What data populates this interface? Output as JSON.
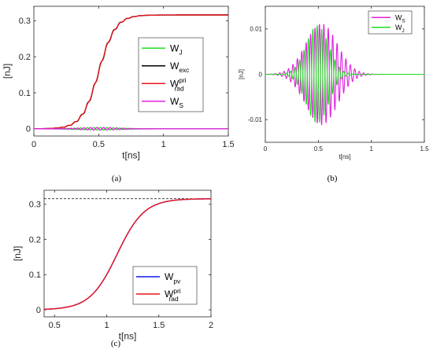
{
  "chart_data": [
    {
      "type": "line",
      "caption": "(a)",
      "xlabel": "t[ns]",
      "ylabel": "[nJ]",
      "xlim": [
        0,
        1.5
      ],
      "ylim": [
        -0.02,
        0.34
      ],
      "xticks": [
        "0",
        "0.5",
        "1",
        "1.5"
      ],
      "yticks": [
        "0",
        "0.1",
        "0.2",
        "0.3"
      ],
      "legend_position": "center-right",
      "series": [
        {
          "name": "W",
          "sub": "J",
          "sup": "",
          "color": "#22dd22",
          "kind": "osc",
          "amplitude": 0.0035,
          "center": 0.5,
          "width": 0.22,
          "frequency": 20,
          "phase": 0
        },
        {
          "name": "W",
          "sub": "exc",
          "sup": "",
          "color": "#000000",
          "kind": "sigmoid",
          "final": 0.316,
          "midpoint": 0.5,
          "width": 0.065,
          "ripple": 0.006
        },
        {
          "name": "W",
          "sub": "rad",
          "sup": "pri",
          "color": "#e8141b",
          "kind": "sigmoid",
          "final": 0.316,
          "midpoint": 0.5,
          "width": 0.065,
          "ripple": 0.004
        },
        {
          "name": "W",
          "sub": "S",
          "sup": "",
          "color": "#e020e0",
          "kind": "osc",
          "amplitude": 0.0035,
          "center": 0.5,
          "width": 0.22,
          "frequency": 20,
          "phase": 3.14159
        }
      ]
    },
    {
      "type": "line",
      "caption": "(b)",
      "xlabel": "t[ns]",
      "ylabel": "[nJ]",
      "xlim": [
        0,
        1.5
      ],
      "ylim": [
        -0.015,
        0.015
      ],
      "xticks": [
        "0",
        "0.5",
        "1",
        "1.5"
      ],
      "yticks": [
        "-0.01",
        "0",
        "0.01"
      ],
      "legend_position": "top-right",
      "series": [
        {
          "name": "W",
          "sub": "S",
          "sup": "",
          "color": "#e020e0",
          "kind": "osc",
          "amplitude": 0.0112,
          "center": 0.53,
          "width": 0.21,
          "frequency": 24,
          "phase": 0
        },
        {
          "name": "W",
          "sub": "J",
          "sup": "",
          "color": "#22dd22",
          "kind": "osc",
          "amplitude": 0.0108,
          "center": 0.49,
          "width": 0.15,
          "frequency": 24,
          "phase": 3.14159
        }
      ]
    },
    {
      "type": "line",
      "caption": "(c)",
      "xlabel": "t[ns]",
      "ylabel": "[nJ]",
      "xlim": [
        0.4,
        2
      ],
      "ylim": [
        -0.02,
        0.34
      ],
      "xticks": [
        "0.5",
        "1",
        "1.5",
        "2"
      ],
      "yticks": [
        "0",
        "0.1",
        "0.2",
        "0.3"
      ],
      "reference_line": {
        "y": 0.316,
        "style": "dashed",
        "color": "#000000"
      },
      "legend_position": "bottom-right",
      "series": [
        {
          "name": "W",
          "sub": "pv",
          "sup": "",
          "color": "#1515ee",
          "kind": "sigmoid",
          "final": 0.316,
          "midpoint": 1.1,
          "width": 0.13,
          "ripple": 0
        },
        {
          "name": "W",
          "sub": "rad",
          "sup": "pri",
          "color": "#e8141b",
          "kind": "sigmoid",
          "final": 0.316,
          "midpoint": 1.1,
          "width": 0.13,
          "ripple": 0
        }
      ]
    }
  ]
}
